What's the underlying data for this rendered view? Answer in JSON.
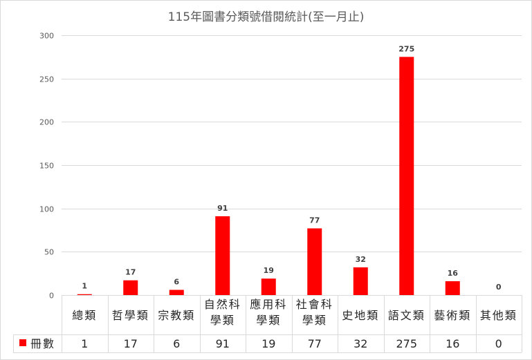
{
  "chart_data": {
    "type": "bar",
    "title": "115年圖書分類號借閱統計(至一月止)",
    "categories": [
      [
        "總類"
      ],
      [
        "哲學類"
      ],
      [
        "宗教類"
      ],
      [
        "自然科",
        "學類"
      ],
      [
        "應用科",
        "學類"
      ],
      [
        "社會科",
        "學類"
      ],
      [
        "史地類"
      ],
      [
        "語文類"
      ],
      [
        "藝術類"
      ],
      [
        "其他類"
      ]
    ],
    "series": [
      {
        "name": "冊數",
        "values": [
          1,
          17,
          6,
          91,
          19,
          77,
          32,
          275,
          16,
          0
        ],
        "color": "#ff0000"
      }
    ],
    "y_ticks": [
      0,
      50,
      100,
      150,
      200,
      250,
      300
    ],
    "ylim": [
      0,
      300
    ],
    "grid": true,
    "data_labels": true,
    "legend": "data-table",
    "colors": {
      "gridline": "#d9d9d9",
      "axis_text": "#595959",
      "table_text": "#262626"
    }
  }
}
